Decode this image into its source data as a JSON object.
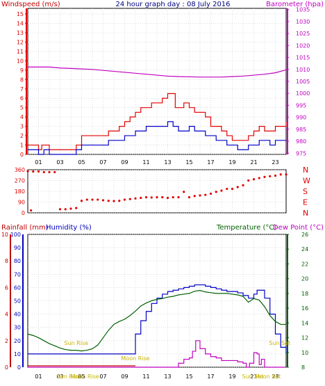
{
  "colors": {
    "wind": "#e00000",
    "gust": "#0000c8",
    "baro": "#c000c0",
    "rain": "#c00000",
    "humidity": "#0000c0",
    "temperature": "#006000",
    "dewpoint": "#0000c0",
    "sun": "#c8b400",
    "moon": "#c8b400",
    "grid": "#c8c8c8",
    "axis": "#000000"
  },
  "chart_data": [
    {
      "type": "line",
      "title": "24 hour graph day : 08 July 2016",
      "left_label": "Windspeed (m/s)",
      "right_label": "Barometer (hpa)",
      "x_ticks": [
        "01",
        "03",
        "05",
        "07",
        "09",
        "11",
        "13",
        "15",
        "17",
        "19",
        "21",
        "23"
      ],
      "y_left_ticks": [
        "0",
        "1",
        "2",
        "3",
        "4",
        "5",
        "6",
        "7",
        "8",
        "9",
        "10",
        "11",
        "12",
        "13",
        "14",
        "15"
      ],
      "y_left_range": [
        0,
        15.6
      ],
      "y_right_ticks": [
        "975",
        "980",
        "985",
        "990",
        "995",
        "1000",
        "1005",
        "1010",
        "1015",
        "1020",
        "1025",
        "1030",
        "1035"
      ],
      "y_right_range": [
        974.5,
        1035.5
      ],
      "x_range": [
        0,
        24
      ],
      "series": [
        {
          "key": "wind",
          "x": [
            0,
            0.5,
            1,
            1.3,
            2,
            2.5,
            3,
            3.5,
            4,
            4.5,
            5,
            5.5,
            6,
            6.5,
            7,
            7.5,
            8,
            8.5,
            9,
            9.5,
            10,
            10.5,
            11,
            11.5,
            12,
            12.5,
            13,
            13.3,
            13.7,
            14,
            14.5,
            15,
            15.5,
            16,
            16.5,
            17,
            17.5,
            18,
            18.5,
            19,
            19.5,
            20,
            20.5,
            21,
            21.5,
            22,
            22.5,
            23,
            23.5,
            24
          ],
          "y": [
            1,
            1,
            0.5,
            1,
            0.5,
            0.5,
            0.5,
            0.5,
            0.5,
            1,
            2,
            2,
            2,
            2,
            2,
            2.5,
            2.5,
            3,
            3.5,
            4,
            4.5,
            5,
            5,
            5.5,
            5.5,
            6,
            6.5,
            6.5,
            5,
            5,
            5.5,
            5,
            4.5,
            4.5,
            4,
            3,
            3,
            2.5,
            2,
            1.5,
            1.5,
            1.5,
            2,
            2.5,
            3,
            2.5,
            2.5,
            3,
            3,
            3.5
          ]
        },
        {
          "key": "gust",
          "x": [
            0,
            0.5,
            1,
            1.5,
            2,
            2.5,
            3,
            3.5,
            4,
            4.5,
            5,
            5.5,
            6,
            6.5,
            7,
            7.5,
            8,
            8.5,
            9,
            9.5,
            10,
            10.5,
            11,
            11.5,
            12,
            12.5,
            13,
            13.5,
            14,
            14.5,
            15,
            15.5,
            16,
            16.5,
            17,
            17.5,
            18,
            18.5,
            19,
            19.5,
            20,
            20.5,
            21,
            21.5,
            22,
            22.5,
            23,
            23.5,
            24
          ],
          "y": [
            0.5,
            0.5,
            0,
            0.5,
            0,
            0,
            0,
            0,
            0,
            0.5,
            1,
            1,
            1,
            1,
            1,
            1.5,
            1.5,
            1.5,
            2,
            2,
            2.5,
            2.5,
            3,
            3,
            3,
            3,
            3.5,
            3,
            2.5,
            2.5,
            3,
            2.5,
            2.5,
            2,
            2,
            1.5,
            1.5,
            1,
            1,
            0.5,
            0.5,
            1,
            1,
            1.5,
            1.5,
            1,
            1.5,
            1.5,
            1.5
          ]
        },
        {
          "key": "baro",
          "x": [
            0,
            1,
            2,
            3,
            4,
            5,
            6,
            7,
            8,
            9,
            10,
            11,
            12,
            13,
            14,
            15,
            16,
            17,
            18,
            19,
            20,
            21,
            22,
            23,
            24
          ],
          "y": [
            1011,
            1011,
            1011,
            1010.6,
            1010.4,
            1010.2,
            1010,
            1009.6,
            1009.2,
            1008.8,
            1008.4,
            1008,
            1007.6,
            1007.2,
            1007,
            1006.9,
            1006.8,
            1006.8,
            1006.8,
            1007,
            1007.2,
            1007.6,
            1008,
            1008.6,
            1009.8
          ]
        }
      ]
    },
    {
      "type": "scatter",
      "title": "",
      "x_range": [
        0,
        24
      ],
      "y_left_ticks": [
        "0",
        "90",
        "180",
        "270",
        "360"
      ],
      "y_left_range": [
        0,
        360
      ],
      "y_right_ticks": [
        "N",
        "W",
        "S",
        "E",
        "N"
      ],
      "series": [
        {
          "key": "wind",
          "x": [
            0,
            0.5,
            1,
            1.5,
            2,
            0.3,
            2.5,
            3,
            3.5,
            4,
            4.5,
            5,
            5.5,
            6,
            6.5,
            7,
            7.5,
            8,
            8.5,
            9,
            9.5,
            10,
            10.5,
            11,
            11.5,
            12,
            12.5,
            13,
            13.5,
            14,
            14.5,
            15,
            15.5,
            16,
            16.5,
            17,
            17.5,
            18,
            18.5,
            19,
            19.5,
            20,
            20.5,
            21,
            21.5,
            22,
            22.5,
            23,
            23.5,
            24
          ],
          "y": [
            348,
            345,
            345,
            340,
            340,
            20,
            340,
            30,
            30,
            35,
            40,
            100,
            110,
            110,
            110,
            105,
            100,
            98,
            100,
            110,
            115,
            120,
            125,
            130,
            128,
            130,
            130,
            125,
            130,
            130,
            175,
            130,
            140,
            145,
            150,
            160,
            175,
            185,
            200,
            200,
            215,
            230,
            270,
            280,
            290,
            300,
            305,
            310,
            320,
            320
          ]
        }
      ]
    },
    {
      "type": "line",
      "title": "",
      "rain_label": "Rainfall (mm)",
      "humidity_label": "Humidity (%)",
      "temp_label": "Temperature (°C)",
      "dew_label": "Dew Point (°C)",
      "x_ticks": [
        "01",
        "03",
        "05",
        "07",
        "09",
        "11",
        "13",
        "15",
        "17",
        "19",
        "21",
        "23"
      ],
      "y_left_ticks": [
        "0",
        "2",
        "4",
        "6",
        "8",
        "10"
      ],
      "y_left_range": [
        0,
        10
      ],
      "y_humidity_ticks": [
        "0",
        "10",
        "20",
        "30",
        "40",
        "50",
        "60",
        "70",
        "80",
        "90",
        "100"
      ],
      "y_humidity_range": [
        0,
        100
      ],
      "y_right_ticks": [
        "8",
        "10",
        "12",
        "14",
        "16",
        "18",
        "20",
        "22",
        "24",
        "26"
      ],
      "y_right_range": [
        8,
        26
      ],
      "x_range": [
        0,
        24
      ],
      "annotations": [
        {
          "text": "Sun Rise",
          "x": 4.5,
          "row": "upper",
          "key": "sun"
        },
        {
          "text": "Moon Rise",
          "x": 10,
          "row": "lower",
          "key": "moon"
        },
        {
          "text": "Sun Set",
          "x": 23.4,
          "row": "upper",
          "key": "sun"
        },
        {
          "text": "Sun Rise",
          "x": 3.8,
          "row": "xaxis",
          "key": "sun"
        },
        {
          "text": "Sun Set",
          "x": 20.9,
          "row": "xaxis",
          "key": "sun"
        },
        {
          "text": "Moon Set",
          "x": 22.3,
          "row": "xaxis",
          "key": "moon"
        },
        {
          "text": "Moon Rise",
          "x": 5.3,
          "row": "xaxis",
          "key": "moon"
        }
      ],
      "series": [
        {
          "key": "humidity",
          "axis": "humidity",
          "x": [
            0,
            1,
            2,
            3,
            4,
            5,
            6,
            7,
            8,
            9,
            9.5,
            10,
            10.5,
            11,
            11.5,
            12,
            12.5,
            13,
            13.5,
            14,
            14.5,
            15,
            15.5,
            16,
            16.5,
            17,
            17.5,
            18,
            18.5,
            19,
            19.5,
            20,
            20.5,
            21,
            21.3,
            21.6,
            22,
            22.5,
            23,
            23.5,
            24
          ],
          "y": [
            10,
            10,
            10,
            10,
            10,
            10,
            10,
            10,
            10,
            10,
            10,
            25,
            35,
            42,
            48,
            52,
            55,
            57,
            58,
            59,
            60,
            61,
            62,
            62,
            61,
            60,
            59,
            58,
            57,
            57,
            56,
            54,
            52,
            55,
            58,
            58,
            52,
            40,
            25,
            15,
            10
          ]
        },
        {
          "key": "temperature",
          "axis": "temperature",
          "x": [
            0,
            0.5,
            1,
            1.5,
            2,
            2.5,
            3,
            3.5,
            4,
            4.5,
            5,
            5.5,
            6,
            6.5,
            7,
            7.5,
            8,
            8.5,
            9,
            9.5,
            10,
            10.5,
            11,
            11.5,
            12,
            12.5,
            13,
            13.5,
            14,
            14.5,
            15,
            15.5,
            16,
            16.5,
            17,
            17.5,
            18,
            18.5,
            19,
            19.5,
            20,
            20.5,
            21,
            21.5,
            22,
            22.5,
            23,
            23.5,
            24
          ],
          "y": [
            12.5,
            12.3,
            12,
            11.6,
            11.2,
            10.9,
            10.6,
            10.4,
            10.3,
            10.3,
            10.2,
            10.3,
            10.5,
            11,
            12,
            13,
            13.8,
            14.2,
            14.5,
            15,
            15.6,
            16.3,
            16.7,
            17,
            17.2,
            17.3,
            17.5,
            17.6,
            17.8,
            17.9,
            18,
            18.3,
            18.4,
            18.2,
            18.1,
            18,
            18,
            18,
            17.9,
            17.8,
            17.6,
            16.8,
            17.3,
            17.1,
            16.2,
            15,
            14.2,
            13.8,
            13.8
          ]
        },
        {
          "key": "rain",
          "axis": "rain",
          "x": [
            0,
            10,
            13.7,
            14,
            14.5,
            15,
            15.3,
            15.6,
            16,
            16.5,
            17,
            17.5,
            18,
            18.5,
            19,
            19.5,
            20,
            20.3,
            20.6,
            21,
            21.3,
            21.5,
            21.7,
            22,
            24
          ],
          "y": [
            0,
            0,
            0,
            0.3,
            0.6,
            0.7,
            1.2,
            2.0,
            1.4,
            1.0,
            0.8,
            0.7,
            0.5,
            0.5,
            0.5,
            0.4,
            0.3,
            0,
            0.3,
            1.1,
            1.0,
            0.2,
            0.6,
            0,
            0
          ]
        }
      ]
    }
  ]
}
